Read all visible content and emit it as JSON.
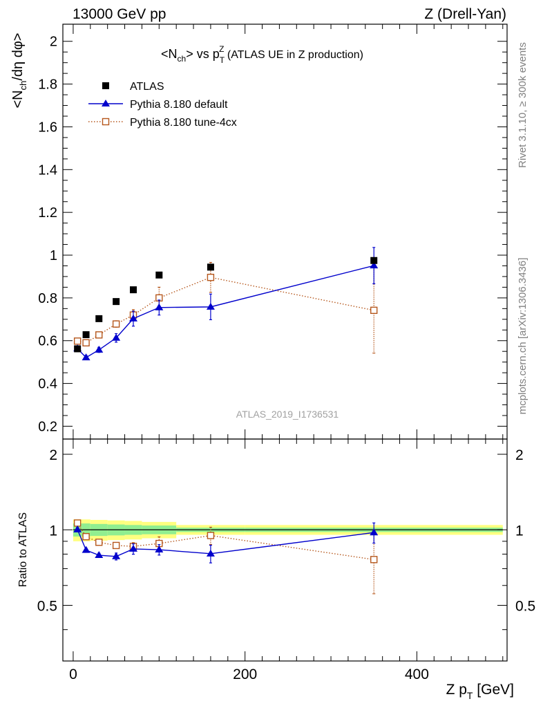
{
  "header": {
    "left": "13000 GeV pp",
    "right": "Z (Drell-Yan)"
  },
  "side_labels": {
    "rivet": "Rivet 3.1.10, ≥ 300k events",
    "mcplots": "mcplots.cern.ch [arXiv:1306.3436]"
  },
  "chart_data": [
    {
      "type": "scatter",
      "panel": "main",
      "title_parts": {
        "a": "<N",
        "a_sub": "ch",
        "b": "> vs p",
        "b_sub": "T",
        "b_sup": "Z",
        "c": " (ATLAS UE in Z production)"
      },
      "ylabel_parts": {
        "a": "<N",
        "a_sub": "ch",
        "b": "/dη dφ>"
      },
      "watermark": "ATLAS_2019_I1736531",
      "xlim": [
        -12,
        505
      ],
      "ylim": [
        0.14,
        2.08
      ],
      "y_ticks": [
        0.2,
        0.4,
        0.6,
        0.8,
        1,
        1.2,
        1.4,
        1.6,
        1.8,
        2
      ],
      "y_tick_labels": [
        "0.2",
        "0.4",
        "0.6",
        "0.8",
        "1",
        "1.2",
        "1.4",
        "1.6",
        "1.8",
        "2"
      ],
      "legend_position": "top-left",
      "series": [
        {
          "name": "ATLAS",
          "style": "filled-square",
          "color": "#000000",
          "x": [
            5,
            15,
            30,
            50,
            70,
            100,
            160,
            350
          ],
          "y": [
            0.562,
            0.628,
            0.703,
            0.783,
            0.838,
            0.907,
            0.944,
            0.975
          ],
          "err": [
            0,
            0,
            0,
            0,
            0,
            0,
            0,
            0
          ]
        },
        {
          "name": "Pythia 8.180 default",
          "style": "filled-triangle",
          "line": "solid",
          "color": "#0000cc",
          "x": [
            5,
            15,
            30,
            50,
            70,
            100,
            160,
            350
          ],
          "y": [
            0.563,
            0.521,
            0.557,
            0.613,
            0.703,
            0.755,
            0.758,
            0.951
          ],
          "err": [
            0.01,
            0.01,
            0.012,
            0.02,
            0.035,
            0.035,
            0.06,
            0.085
          ]
        },
        {
          "name": "Pythia 8.180 tune-4cx",
          "style": "open-square",
          "line": "dotted",
          "color": "#b5561b",
          "x": [
            5,
            15,
            30,
            50,
            70,
            100,
            160,
            350
          ],
          "y": [
            0.598,
            0.59,
            0.627,
            0.678,
            0.72,
            0.8,
            0.896,
            0.742
          ],
          "err": [
            0.008,
            0.01,
            0.012,
            0.015,
            0.025,
            0.05,
            0.07,
            0.2
          ]
        }
      ]
    },
    {
      "type": "scatter",
      "panel": "ratio",
      "ylabel": "Ratio to ATLAS",
      "xlabel_parts": {
        "a": "Z p",
        "a_sub": "T",
        "b": " [GeV]"
      },
      "xlim": [
        -12,
        505
      ],
      "ylim": [
        0.3,
        2.3
      ],
      "x_ticks": [
        0,
        200,
        400
      ],
      "x_tick_labels": [
        "0",
        "200",
        "400"
      ],
      "y_ticks": [
        0.5,
        1,
        2
      ],
      "y_tick_labels": [
        "0.5",
        "1",
        "2"
      ],
      "reference": 1,
      "bands": {
        "colors": {
          "inner": "#90ee90",
          "outer": "#ffff80"
        },
        "segments": [
          {
            "x0": 0,
            "x1": 10,
            "inner": 0.06,
            "outer": 0.1
          },
          {
            "x0": 10,
            "x1": 20,
            "inner": 0.06,
            "outer": 0.1
          },
          {
            "x0": 20,
            "x1": 40,
            "inner": 0.055,
            "outer": 0.095
          },
          {
            "x0": 40,
            "x1": 60,
            "inner": 0.05,
            "outer": 0.09
          },
          {
            "x0": 60,
            "x1": 80,
            "inner": 0.045,
            "outer": 0.085
          },
          {
            "x0": 80,
            "x1": 120,
            "inner": 0.04,
            "outer": 0.075
          },
          {
            "x0": 120,
            "x1": 200,
            "inner": 0.02,
            "outer": 0.045
          },
          {
            "x0": 200,
            "x1": 500,
            "inner": 0.02,
            "outer": 0.045
          }
        ]
      },
      "series": [
        {
          "name": "Pythia 8.180 default",
          "style": "filled-triangle",
          "line": "solid",
          "color": "#0000cc",
          "x": [
            5,
            15,
            30,
            50,
            70,
            100,
            160,
            350
          ],
          "y": [
            1.002,
            0.83,
            0.792,
            0.783,
            0.839,
            0.833,
            0.803,
            0.975
          ],
          "err": [
            0.02,
            0.015,
            0.015,
            0.025,
            0.04,
            0.04,
            0.065,
            0.09
          ]
        },
        {
          "name": "Pythia 8.180 tune-4cx",
          "style": "open-square",
          "line": "dotted",
          "color": "#b5561b",
          "x": [
            5,
            15,
            30,
            50,
            70,
            100,
            160,
            350
          ],
          "y": [
            1.064,
            0.939,
            0.892,
            0.866,
            0.859,
            0.882,
            0.949,
            0.761
          ],
          "err": [
            0.015,
            0.015,
            0.02,
            0.02,
            0.03,
            0.055,
            0.075,
            0.205
          ]
        }
      ]
    }
  ]
}
